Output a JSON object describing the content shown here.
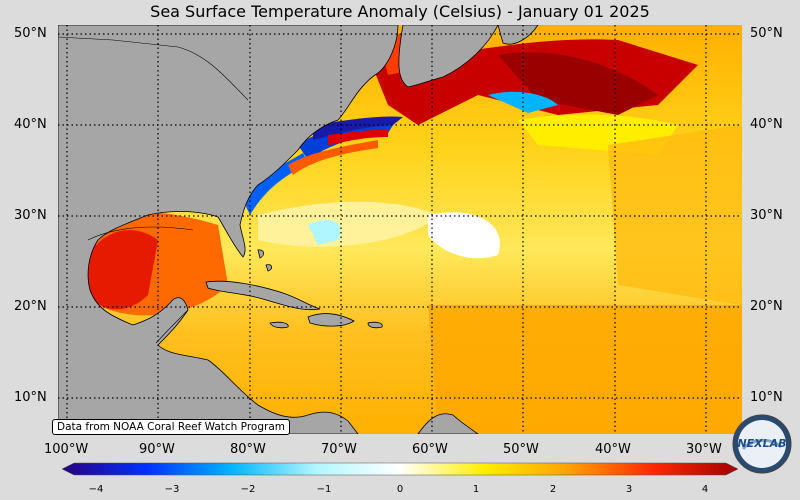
{
  "title": "Sea Surface Temperature Anomaly (Celsius) - January 01 2025",
  "source_note": "Data from NOAA Coral Reef Watch Program",
  "lat_labels": [
    "50°N",
    "40°N",
    "30°N",
    "20°N",
    "10°N"
  ],
  "lon_labels": [
    "100°W",
    "90°W",
    "80°W",
    "70°W",
    "60°W",
    "50°W",
    "40°W",
    "30°W"
  ],
  "colorbar": {
    "min": -4,
    "max": 4,
    "ticks": [
      "−4",
      "−3",
      "−2",
      "−1",
      "0",
      "1",
      "2",
      "3",
      "4"
    ],
    "colors": [
      "#2a0080",
      "#0030ff",
      "#00b4ff",
      "#b0f6ff",
      "#ffffff",
      "#ffee00",
      "#ffa000",
      "#ff2800",
      "#a00000"
    ]
  },
  "logo": {
    "text": "NEXLAB"
  },
  "colors": {
    "land": "#a6a6a6",
    "background": "#dcdcdc"
  }
}
